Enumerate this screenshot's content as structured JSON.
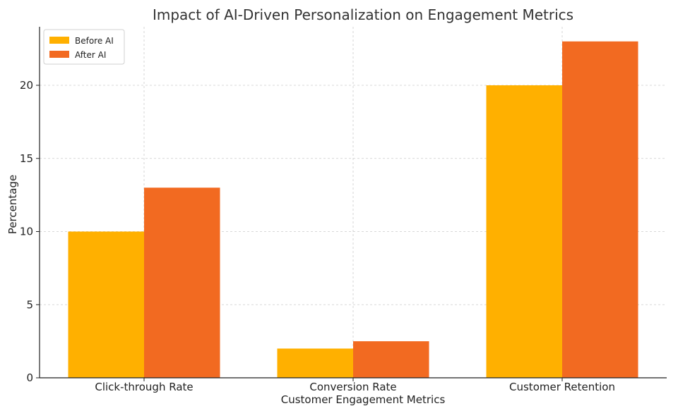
{
  "chart_data": {
    "type": "bar",
    "title": "Impact of AI-Driven Personalization on Engagement Metrics",
    "xlabel": "Customer Engagement Metrics",
    "ylabel": "Percentage",
    "categories": [
      "Click-through Rate",
      "Conversion Rate",
      "Customer Retention"
    ],
    "series": [
      {
        "name": "Before AI",
        "values": [
          10,
          2,
          20
        ],
        "color": "#FFB000"
      },
      {
        "name": "After AI",
        "values": [
          13,
          2.5,
          23
        ],
        "color": "#F26A21"
      }
    ],
    "ylim": [
      0,
      24
    ],
    "yticks": [
      0,
      5,
      10,
      15,
      20
    ],
    "grid": true,
    "legend_position": "top-left"
  }
}
